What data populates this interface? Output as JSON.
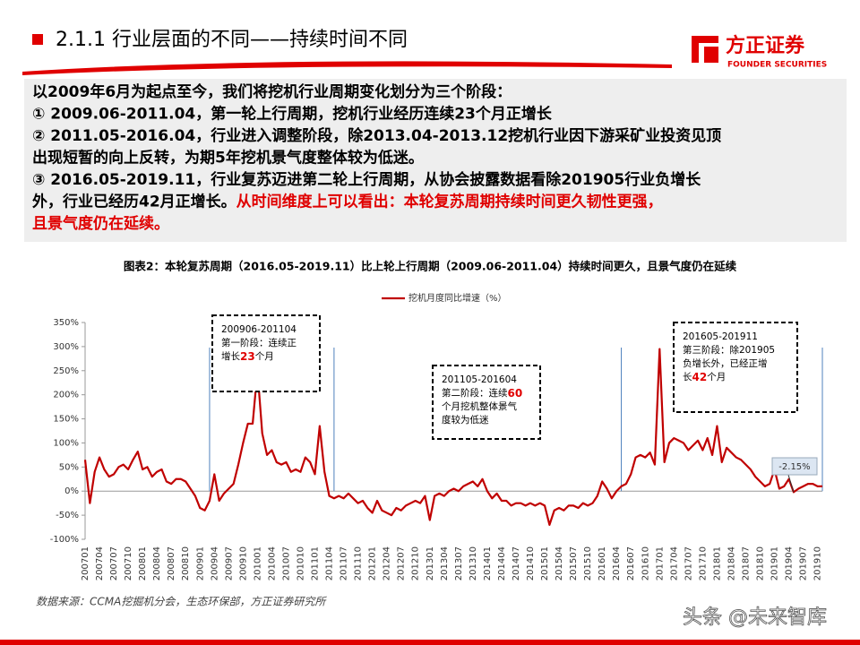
{
  "header": {
    "title": "2.1.1 行业层面的不同——持续时间不同"
  },
  "logo": {
    "name": "方正证券",
    "english": "FOUNDER SECURITIES"
  },
  "text_box": {
    "highlight_color": "#e00000",
    "lines": [
      [
        {
          "text": "以2009年6月为起点至今，我们将挖机行业周期变化划分为三个阶段：",
          "highlight": false
        }
      ],
      [
        {
          "text": "① 2009.06-2011.04，第一轮上行周期，挖机行业经历连续23个月正增长",
          "highlight": false
        }
      ],
      [
        {
          "text": "② 2011.05-2016.04，行业进入调整阶段，除2013.04-2013.12挖机行业因下游采矿业投资见顶",
          "highlight": false
        }
      ],
      [
        {
          "text": "出现短暂的向上反转，为期5年挖机景气度整体较为低迷。",
          "highlight": false
        }
      ],
      [
        {
          "text": "③ 2016.05-2019.11，行业复苏迈进第二轮上行周期，从协会披露数据看除201905行业负增长",
          "highlight": false
        }
      ],
      [
        {
          "text": "外，行业已经历42月正增长。",
          "highlight": false
        },
        {
          "text": "从时间维度上可以看出：本轮复苏周期持续时间更久韧性更强，",
          "highlight": true
        }
      ],
      [
        {
          "text": "且景气度仍在延续。",
          "highlight": true
        }
      ]
    ]
  },
  "source": "数据来源：CCMA挖掘机分会，生态环保部，方正证券研究所",
  "watermark": "头条 @未来智库",
  "chart_data": {
    "type": "line",
    "title": "图表2：本轮复苏周期（2016.05-2019.11）比上轮上行周期（2009.06-2011.04）持续时间更久，且景气度仍在延续",
    "categories": [
      "200701",
      null,
      null,
      "200704",
      null,
      null,
      "200707",
      null,
      null,
      "200710",
      null,
      null,
      "200801",
      null,
      null,
      "200804",
      null,
      null,
      "200807",
      null,
      null,
      "200810",
      null,
      null,
      "200901",
      null,
      null,
      "200904",
      null,
      null,
      "200907",
      null,
      null,
      "200910",
      null,
      null,
      "201001",
      null,
      null,
      "201004",
      null,
      null,
      "201007",
      null,
      null,
      "201010",
      null,
      null,
      "201101",
      null,
      null,
      "201104",
      null,
      null,
      "201107",
      null,
      null,
      "201110",
      null,
      null,
      "201201",
      null,
      null,
      "201204",
      null,
      null,
      "201207",
      null,
      null,
      "201210",
      null,
      null,
      "201301",
      null,
      null,
      "201304",
      null,
      null,
      "201307",
      null,
      null,
      "201310",
      null,
      null,
      "201401",
      null,
      null,
      "201404",
      null,
      null,
      "201407",
      null,
      null,
      "201410",
      null,
      null,
      "201501",
      null,
      null,
      "201504",
      null,
      null,
      "201507",
      null,
      null,
      "201510",
      null,
      null,
      "201601",
      null,
      null,
      "201604",
      null,
      null,
      "201607",
      null,
      null,
      "201610",
      null,
      null,
      "201701",
      null,
      null,
      "201704",
      null,
      null,
      "201707",
      null,
      null,
      "201710",
      null,
      null,
      "201801",
      null,
      null,
      "201804",
      null,
      null,
      "201807",
      null,
      null,
      "201810",
      null,
      null,
      "201901",
      null,
      null,
      "201904",
      null,
      null,
      "201907",
      null,
      null,
      "201910",
      null
    ],
    "series": [
      {
        "name": "挖机月度同比增速（%）",
        "color": "#c00000",
        "values": [
          65,
          -25,
          40,
          70,
          45,
          30,
          35,
          50,
          55,
          45,
          65,
          82,
          45,
          50,
          30,
          40,
          45,
          20,
          15,
          25,
          25,
          20,
          5,
          -10,
          -35,
          -40,
          -20,
          35,
          -20,
          -5,
          5,
          15,
          55,
          100,
          140,
          140,
          250,
          120,
          75,
          85,
          60,
          55,
          60,
          40,
          45,
          40,
          70,
          60,
          35,
          135,
          40,
          -10,
          -15,
          -10,
          -15,
          -5,
          -15,
          -25,
          -20,
          -35,
          -45,
          -20,
          -40,
          -45,
          -50,
          -35,
          -40,
          -30,
          -25,
          -20,
          -25,
          -10,
          -60,
          -10,
          -5,
          -10,
          0,
          5,
          0,
          10,
          15,
          20,
          10,
          25,
          0,
          -15,
          -5,
          -20,
          -20,
          -30,
          -25,
          -25,
          -30,
          -25,
          -30,
          -25,
          -30,
          -70,
          -40,
          -35,
          -40,
          -30,
          -30,
          -35,
          -25,
          -30,
          -25,
          -10,
          20,
          5,
          -15,
          0,
          10,
          15,
          35,
          70,
          75,
          70,
          80,
          55,
          295,
          60,
          100,
          110,
          105,
          100,
          85,
          95,
          105,
          85,
          110,
          75,
          135,
          60,
          90,
          80,
          70,
          65,
          55,
          45,
          30,
          20,
          10,
          15,
          45,
          5,
          10,
          25,
          -2.15,
          5,
          10,
          15,
          15,
          10,
          10
        ]
      }
    ],
    "ylim": [
      -100,
      350
    ],
    "yticks": [
      {
        "value": -100,
        "label": "-100%"
      },
      {
        "value": -50,
        "label": "-50%"
      },
      {
        "value": 0,
        "label": "0%"
      },
      {
        "value": 50,
        "label": "50%"
      },
      {
        "value": 100,
        "label": "100%"
      },
      {
        "value": 150,
        "label": "150%"
      },
      {
        "value": 200,
        "label": "200%"
      },
      {
        "value": 250,
        "label": "250%"
      },
      {
        "value": 300,
        "label": "300%"
      },
      {
        "value": 350,
        "label": "350%"
      }
    ],
    "vlines": [
      26,
      52,
      112,
      154
    ],
    "vline_color": "#4f81bd",
    "legend": "top",
    "callout": {
      "index": 148,
      "label": "-2.15%"
    },
    "annotations": [
      {
        "title": "200906-201104",
        "lines": [
          [
            "第一阶段：连续正"
          ],
          [
            "增长",
            "23",
            "个月"
          ]
        ],
        "highlight": "23"
      },
      {
        "title": "201105-201604",
        "lines": [
          [
            "第二阶段：连续",
            "60"
          ],
          [
            "个月挖机整体景气"
          ],
          [
            "度较为低迷"
          ]
        ],
        "highlight": "60"
      },
      {
        "title": "201605-201911",
        "lines": [
          [
            "第三阶段：除201905"
          ],
          [
            "负增长外，已经正增"
          ],
          [
            "长",
            "42",
            "个月"
          ]
        ],
        "highlight": "42"
      }
    ]
  }
}
